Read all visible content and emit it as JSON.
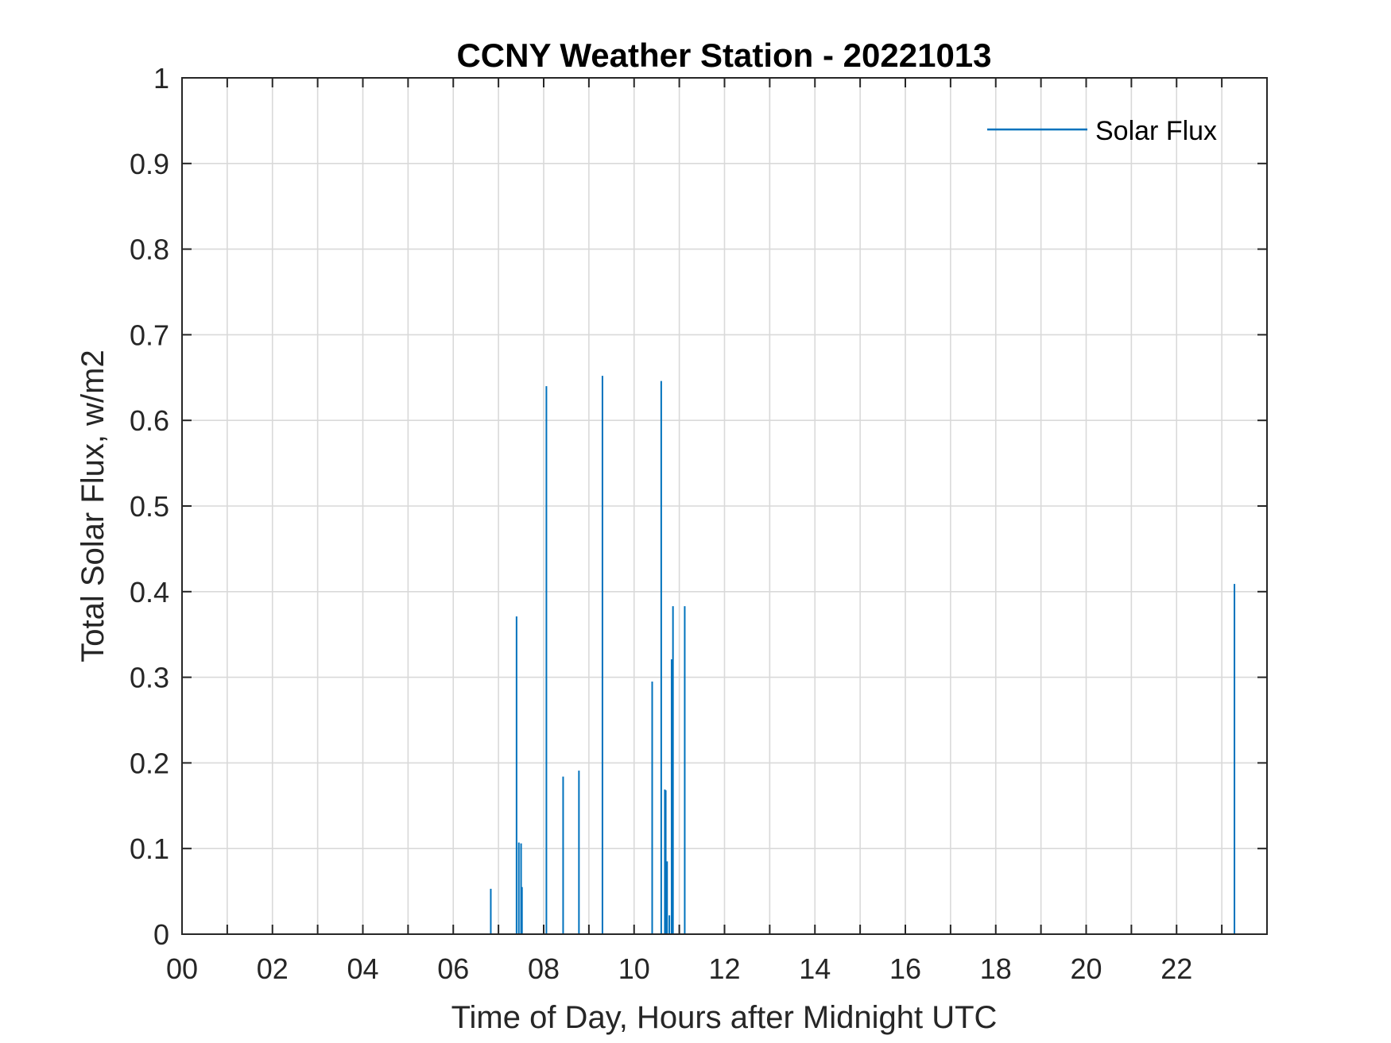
{
  "chart_data": {
    "type": "line",
    "title": "CCNY Weather Station - 20221013",
    "xlabel": "Time of Day, Hours after Midnight UTC",
    "ylabel": "Total Solar Flux, w/m2",
    "xlim": [
      0,
      24
    ],
    "ylim": [
      0,
      1
    ],
    "grid": true,
    "legend_position": "top-right",
    "x_minor_step": 1,
    "x_ticks": [
      0,
      2,
      4,
      6,
      8,
      10,
      12,
      14,
      16,
      18,
      20,
      22
    ],
    "x_tick_labels": [
      "00",
      "02",
      "04",
      "06",
      "08",
      "10",
      "12",
      "14",
      "16",
      "18",
      "20",
      "22"
    ],
    "y_ticks": [
      0,
      0.1,
      0.2,
      0.3,
      0.4,
      0.5,
      0.6,
      0.7,
      0.8,
      0.9,
      1
    ],
    "y_tick_labels": [
      "0",
      "0.1",
      "0.2",
      "0.3",
      "0.4",
      "0.5",
      "0.6",
      "0.7",
      "0.8",
      "0.9",
      "1"
    ],
    "series": [
      {
        "name": "Solar Flux",
        "color": "#0072BD",
        "spikes": [
          {
            "x": 6.83,
            "y": 0.053
          },
          {
            "x": 7.4,
            "y": 0.371
          },
          {
            "x": 7.45,
            "y": 0.107
          },
          {
            "x": 7.5,
            "y": 0.106
          },
          {
            "x": 7.52,
            "y": 0.055
          },
          {
            "x": 8.06,
            "y": 0.64
          },
          {
            "x": 8.43,
            "y": 0.184
          },
          {
            "x": 8.78,
            "y": 0.191
          },
          {
            "x": 9.3,
            "y": 0.652
          },
          {
            "x": 10.4,
            "y": 0.295
          },
          {
            "x": 10.6,
            "y": 0.646
          },
          {
            "x": 10.68,
            "y": 0.169
          },
          {
            "x": 10.7,
            "y": 0.168
          },
          {
            "x": 10.73,
            "y": 0.085
          },
          {
            "x": 10.78,
            "y": 0.022
          },
          {
            "x": 10.83,
            "y": 0.321
          },
          {
            "x": 10.86,
            "y": 0.383
          },
          {
            "x": 11.12,
            "y": 0.383
          },
          {
            "x": 23.28,
            "y": 0.409
          }
        ]
      }
    ]
  }
}
